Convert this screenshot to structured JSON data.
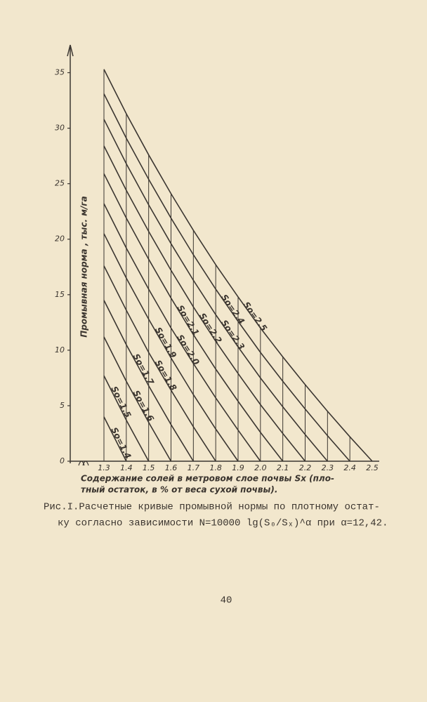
{
  "chart_data": {
    "type": "line",
    "y_label": "Промывная норма , тыс. м/га",
    "x_label": [
      "Содержание солей в метровом слое почвы Sx (пло-",
      "тный остаток, в % от веса сухой почвы)."
    ],
    "caption": [
      "Рис.I.Расчетные кривые промывной нормы по плотному остат-",
      "ку согласно зависимости  N=10000 lg(S₀/Sₓ)^α при α=12,42."
    ],
    "page_number": "40",
    "color": "#3b3631",
    "x": [
      1.3,
      1.4,
      1.5,
      1.6,
      1.7,
      1.8,
      1.9,
      2.0,
      2.1,
      2.2,
      2.3,
      2.4,
      2.5
    ],
    "xlim": [
      1.3,
      2.5
    ],
    "xticks": [
      1.3,
      1.4,
      1.5,
      1.6,
      1.7,
      1.8,
      1.9,
      {
        "value": 2.0,
        "label": "2.0"
      },
      2.1,
      2.2,
      2.3,
      2.4,
      2.5
    ],
    "ylim": [
      0,
      37.5
    ],
    "yticks": [
      0,
      5,
      10,
      15,
      20,
      25,
      30,
      35
    ],
    "series": [
      {
        "name": "So=1.4",
        "values": [
          4.0,
          0,
          null,
          null,
          null,
          null,
          null,
          null,
          null,
          null,
          null,
          null,
          null
        ]
      },
      {
        "name": "So=1.5",
        "values": [
          7.7,
          3.7,
          0,
          null,
          null,
          null,
          null,
          null,
          null,
          null,
          null,
          null,
          null
        ]
      },
      {
        "name": "So=1.6",
        "values": [
          11.2,
          7.2,
          3.5,
          0,
          null,
          null,
          null,
          null,
          null,
          null,
          null,
          null,
          null
        ]
      },
      {
        "name": "So=1.7",
        "values": [
          14.5,
          10.5,
          6.8,
          3.3,
          0,
          null,
          null,
          null,
          null,
          null,
          null,
          null,
          null
        ]
      },
      {
        "name": "So=1.8",
        "values": [
          17.6,
          13.6,
          9.8,
          6.4,
          3.1,
          0,
          null,
          null,
          null,
          null,
          null,
          null,
          null
        ]
      },
      {
        "name": "So=1.9",
        "values": [
          20.5,
          16.5,
          12.8,
          9.3,
          6.0,
          2.9,
          0,
          null,
          null,
          null,
          null,
          null,
          null
        ]
      },
      {
        "name": "So=2.0",
        "values": [
          23.2,
          19.2,
          15.5,
          12.0,
          8.8,
          5.7,
          2.8,
          0,
          null,
          null,
          null,
          null,
          null
        ]
      },
      {
        "name": "So=2.1",
        "values": [
          25.9,
          21.9,
          18.2,
          14.7,
          11.4,
          8.3,
          5.4,
          2.6,
          0,
          null,
          null,
          null,
          null
        ]
      },
      {
        "name": "So=2.2",
        "values": [
          28.4,
          24.4,
          20.7,
          17.2,
          13.9,
          10.8,
          7.9,
          5.1,
          2.5,
          0,
          null,
          null,
          null
        ]
      },
      {
        "name": "So=2.3",
        "values": [
          30.8,
          26.8,
          23.1,
          19.6,
          16.3,
          13.2,
          10.3,
          7.5,
          4.9,
          2.4,
          0,
          null,
          null
        ]
      },
      {
        "name": "So=2.4",
        "values": [
          33.1,
          29.1,
          25.4,
          21.9,
          18.6,
          15.5,
          12.6,
          9.8,
          7.2,
          4.7,
          2.3,
          0,
          null
        ]
      },
      {
        "name": "So=2.5",
        "values": [
          35.3,
          31.3,
          27.6,
          24.1,
          20.8,
          17.7,
          14.8,
          12.0,
          9.4,
          6.9,
          4.5,
          2.2,
          0
        ]
      }
    ]
  }
}
